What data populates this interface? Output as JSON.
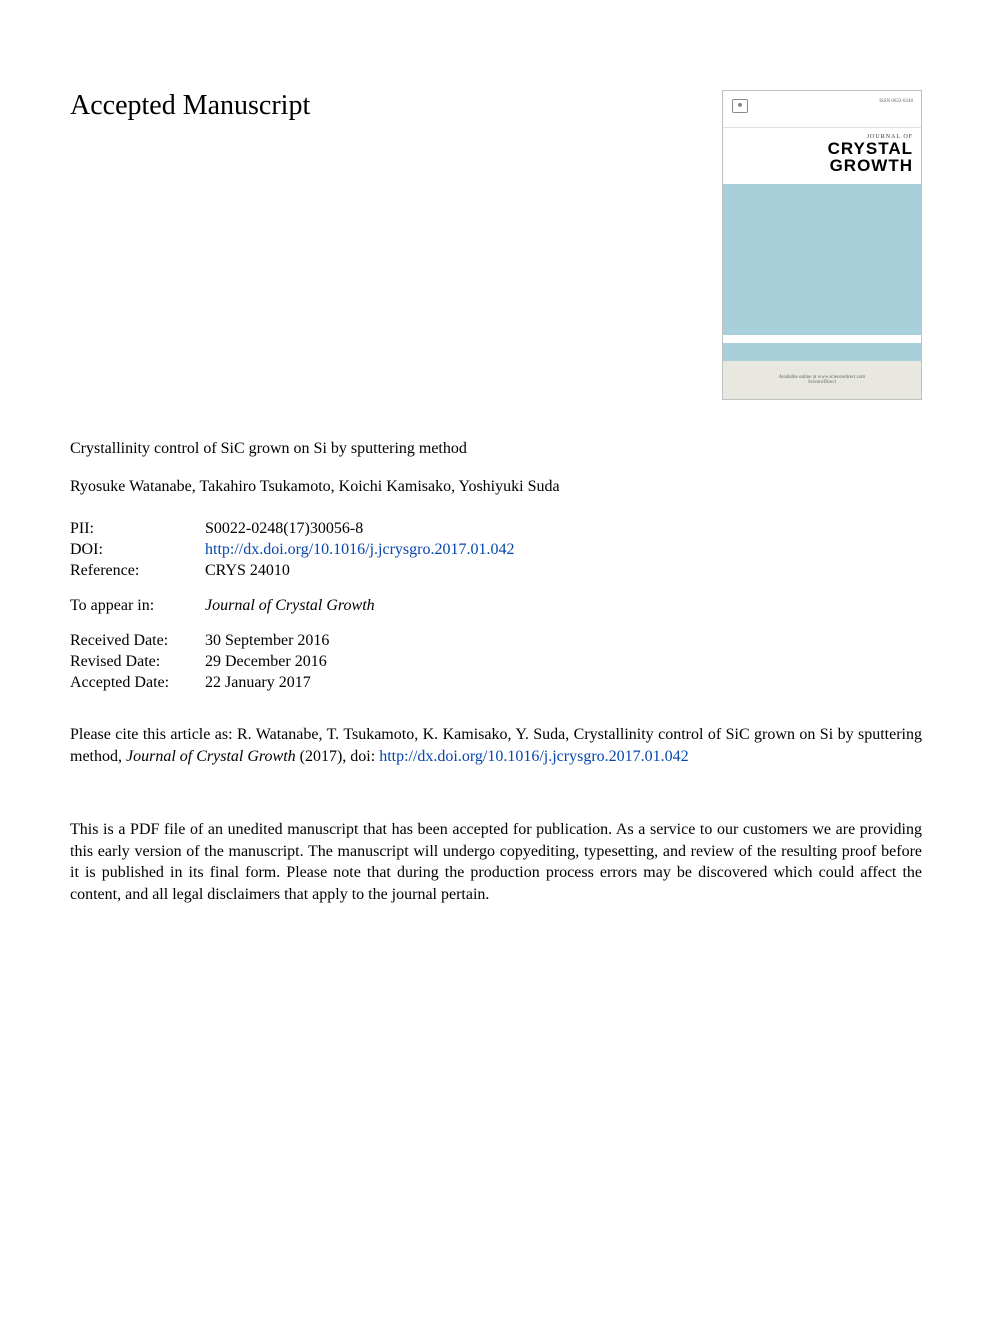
{
  "heading": "Accepted Manuscript",
  "article_title": "Crystallinity control of SiC grown on Si by sputtering method",
  "authors": "Ryosuke Watanabe, Takahiro Tsukamoto, Koichi Kamisako, Yoshiyuki Suda",
  "meta": {
    "pii_label": "PII:",
    "pii_value": "S0022-0248(17)30056-8",
    "doi_label": "DOI:",
    "doi_value": "http://dx.doi.org/10.1016/j.jcrysgro.2017.01.042",
    "reference_label": "Reference:",
    "reference_value": "CRYS 24010",
    "toappear_label": "To appear in:",
    "toappear_value": "Journal of Crystal Growth",
    "received_label": "Received Date:",
    "received_value": "30 September 2016",
    "revised_label": "Revised Date:",
    "revised_value": "29 December 2016",
    "accepted_label": "Accepted Date:",
    "accepted_value": "22 January 2017"
  },
  "citation": {
    "prefix": "Please cite this article as: R. Watanabe, T. Tsukamoto, K. Kamisako, Y. Suda, Crystallinity control of SiC grown on Si by sputtering method, ",
    "journal_italic": "Journal of Crystal Growth",
    "year_doi_prefix": " (2017), doi: ",
    "doi_link": "http://dx.doi.org/10.1016/j.jcrysgro.2017.01.042"
  },
  "disclaimer": "This is a PDF file of an unedited manuscript that has been accepted for publication. As a service to our customers we are providing this early version of the manuscript. The manuscript will undergo copyediting, typesetting, and review of the resulting proof before it is published in its final form. Please note that during the production process errors may be discovered which could affect the content, and all legal disclaimers that apply to the journal pertain.",
  "cover": {
    "issn": "ISSN 0022-0248",
    "journal_of": "JOURNAL OF",
    "title_line1": "CRYSTAL",
    "title_line2": "GROWTH",
    "footer_line1": "Available online at www.sciencedirect.com",
    "footer_line2": "ScienceDirect"
  },
  "colors": {
    "link": "#0645ad",
    "cover_blue": "#a8d0db",
    "cover_border": "#c0c0c0",
    "cover_footer_bg": "#e8e8e0",
    "text": "#000000",
    "background": "#ffffff"
  },
  "typography": {
    "heading_fontsize": 28,
    "body_fontsize": 16,
    "font_family": "Georgia, serif"
  }
}
